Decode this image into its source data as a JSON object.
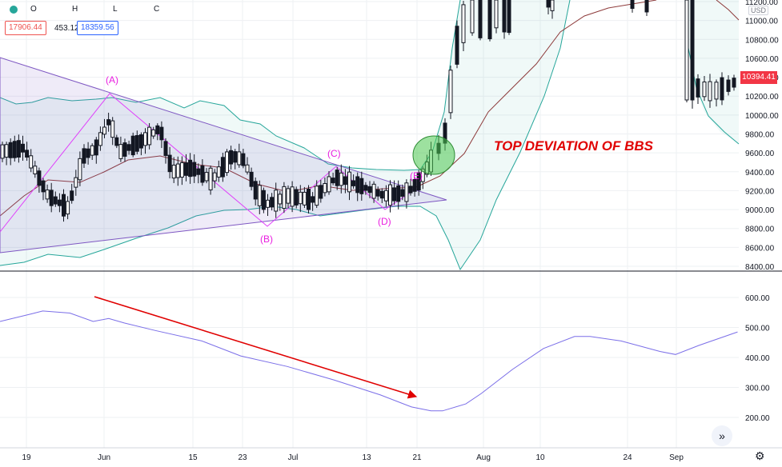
{
  "header": {
    "ohlc_labels": [
      "O",
      "H",
      "L",
      "C"
    ],
    "price_a": "17906.44",
    "price_mid": "453.12",
    "price_b": "18359.56",
    "currency": "USD"
  },
  "price_scale": {
    "last_price": "10394.41",
    "ticks": [
      "11200.00",
      "11000.00",
      "10800.00",
      "10600.00",
      "10400.00",
      "10200.00",
      "10000.00",
      "9800.00",
      "9600.00",
      "9400.00",
      "9200.00",
      "9000.00",
      "8800.00",
      "8600.00",
      "8400.00"
    ]
  },
  "indicator_scale": {
    "ticks": [
      "600.00",
      "500.00",
      "400.00",
      "300.00",
      "200.00"
    ]
  },
  "time_axis": {
    "ticks": [
      "19",
      "Jun",
      "15",
      "23",
      "Jul",
      "13",
      "21",
      "Aug",
      "10",
      "24",
      "Sep"
    ]
  },
  "annotations": {
    "A": "(A)",
    "B": "(B)",
    "C": "(C)",
    "D": "(D)",
    "E": "(E)",
    "headline": "TOP DEVIATION OF BBS"
  },
  "colors": {
    "up": "#26a69a",
    "down": "#ef5350",
    "candle": "#131722",
    "band": "#26a69a",
    "basis": "#8d3a3a",
    "triangle": "#7e57c2",
    "wave": "#e040fb",
    "arrow": "#e00000",
    "indicator": "#7b6fe8",
    "label": "#e91ee0"
  },
  "chart_data": {
    "type": "candlestick",
    "title": "",
    "x": [
      "19",
      "Jun",
      "15",
      "23",
      "Jul",
      "13",
      "21",
      "Aug",
      "10",
      "24",
      "Sep"
    ],
    "ylim": [
      8400,
      11250
    ],
    "pattern_points": [
      {
        "label": "(A)",
        "value": 10230
      },
      {
        "label": "(B)",
        "value": 8810
      },
      {
        "label": "(C)",
        "value": 9460
      },
      {
        "label": "(D)",
        "value": 8990
      },
      {
        "label": "(E)",
        "value": 9330
      }
    ],
    "indicator": {
      "ylim": [
        150,
        650
      ],
      "x_frac": [
        0.0,
        0.04,
        0.055,
        0.09,
        0.12,
        0.14,
        0.16,
        0.2,
        0.26,
        0.31,
        0.37,
        0.43,
        0.49,
        0.53,
        0.555,
        0.57,
        0.6,
        0.62,
        0.66,
        0.7,
        0.74,
        0.76,
        0.8,
        0.85,
        0.87,
        0.9,
        0.95
      ],
      "values": [
        520,
        545,
        555,
        548,
        520,
        530,
        515,
        490,
        455,
        405,
        370,
        325,
        275,
        235,
        222,
        222,
        245,
        280,
        360,
        430,
        470,
        470,
        455,
        420,
        410,
        440,
        485
      ]
    }
  }
}
